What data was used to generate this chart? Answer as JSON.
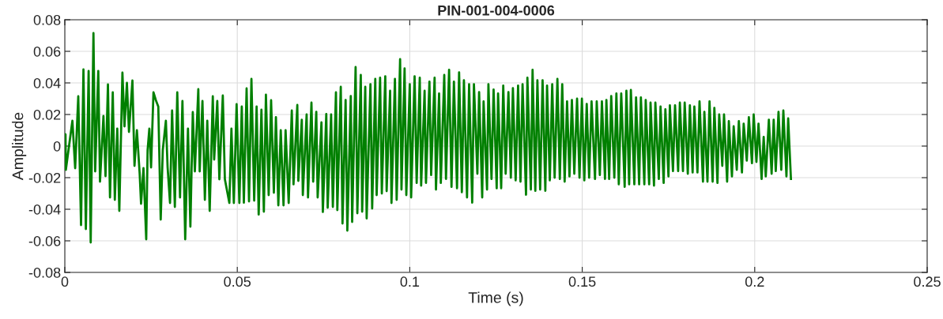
{
  "chart_data": {
    "type": "line",
    "title": "PIN-001-004-0006",
    "xlabel": "Time (s)",
    "ylabel": "Amplitude",
    "xlim": [
      0,
      0.25
    ],
    "xticks": [
      0,
      0.05,
      0.1,
      0.15,
      0.2,
      0.25
    ],
    "ylim": [
      -0.08,
      0.08
    ],
    "yticks": [
      -0.08,
      -0.06,
      -0.04,
      -0.02,
      0,
      0.02,
      0.04,
      0.06,
      0.08
    ],
    "grid": true,
    "line_style": "solid",
    "color": "#008000",
    "x": [
      0.0,
      0.0002,
      0.0003,
      0.0022,
      0.003,
      0.0039,
      0.0047,
      0.0054,
      0.0061,
      0.0069,
      0.0075,
      0.0083,
      0.0088,
      0.0097,
      0.0102,
      0.0112,
      0.0118,
      0.0125,
      0.0131,
      0.0139,
      0.0145,
      0.0152,
      0.0158,
      0.0167,
      0.0173,
      0.018,
      0.0186,
      0.0196,
      0.0202,
      0.0209,
      0.0217,
      0.0221,
      0.0228,
      0.0236,
      0.024,
      0.0245,
      0.025,
      0.0257,
      0.0264,
      0.0271,
      0.0278,
      0.0284,
      0.0293,
      0.0298,
      0.0305,
      0.0311,
      0.0319,
      0.0326,
      0.0334,
      0.0341,
      0.0349,
      0.0357,
      0.0364,
      0.0371,
      0.0377,
      0.0387,
      0.0391,
      0.0399,
      0.0406,
      0.0413,
      0.042,
      0.0429,
      0.0433,
      0.0442,
      0.0448,
      0.0458,
      0.0464,
      0.0477,
      0.0483,
      0.049,
      0.0498,
      0.0506,
      0.0513,
      0.0519,
      0.0527,
      0.0534,
      0.0541,
      0.0549,
      0.0556,
      0.0562,
      0.057,
      0.0577,
      0.0583,
      0.0591,
      0.0598,
      0.0606,
      0.0612,
      0.0619,
      0.0626,
      0.0634,
      0.064,
      0.0649,
      0.0658,
      0.0663,
      0.0674,
      0.0677,
      0.0687,
      0.069,
      0.0701,
      0.0705,
      0.0715,
      0.072,
      0.0729,
      0.0733,
      0.0744,
      0.0748,
      0.0758,
      0.0762,
      0.0772,
      0.0777,
      0.0786,
      0.079,
      0.08,
      0.0805,
      0.0814,
      0.0819,
      0.0829,
      0.0833,
      0.0843,
      0.0848,
      0.0858,
      0.0862,
      0.0871,
      0.0875,
      0.0886,
      0.0891,
      0.09,
      0.0904,
      0.0914,
      0.0919,
      0.0929,
      0.0933,
      0.0943,
      0.0947,
      0.0957,
      0.0962,
      0.0972,
      0.0976,
      0.0985,
      0.099,
      0.1,
      0.1004,
      0.1014,
      0.102,
      0.1029,
      0.1033,
      0.1043,
      0.1047,
      0.1057,
      0.1062,
      0.1072,
      0.1076,
      0.1085,
      0.109,
      0.11,
      0.1105,
      0.1114,
      0.1121,
      0.1128,
      0.1137,
      0.1143,
      0.1151,
      0.1157,
      0.1166,
      0.1172,
      0.1181,
      0.1186,
      0.1196,
      0.1201,
      0.121,
      0.1214,
      0.1224,
      0.1228,
      0.1237,
      0.1243,
      0.1252,
      0.1256,
      0.1265,
      0.1271,
      0.1278,
      0.1286,
      0.1293,
      0.1299,
      0.1307,
      0.1314,
      0.1321,
      0.1327,
      0.1337,
      0.1341,
      0.1351,
      0.1356,
      0.1364,
      0.137,
      0.1378,
      0.1385,
      0.1393,
      0.1398,
      0.1406,
      0.1413,
      0.142,
      0.1428,
      0.1435,
      0.1442,
      0.1449,
      0.1456,
      0.1463,
      0.147,
      0.1477,
      0.1485,
      0.1492,
      0.1499,
      0.1506,
      0.1513,
      0.152,
      0.1527,
      0.1537,
      0.1542,
      0.1551,
      0.1557,
      0.1566,
      0.157,
      0.1578,
      0.1584,
      0.1593,
      0.1599,
      0.1606,
      0.1613,
      0.1623,
      0.1628,
      0.1636,
      0.1641,
      0.1651,
      0.1656,
      0.1665,
      0.167,
      0.168,
      0.1684,
      0.1694,
      0.1698,
      0.1708,
      0.1712,
      0.1722,
      0.1727,
      0.1736,
      0.1741,
      0.175,
      0.1754,
      0.1763,
      0.1769,
      0.1778,
      0.1783,
      0.1792,
      0.1797,
      0.1806,
      0.1812,
      0.182,
      0.1825,
      0.1834,
      0.184,
      0.185,
      0.1854,
      0.1863,
      0.1869,
      0.1878,
      0.1883,
      0.1892,
      0.1897,
      0.1906,
      0.1911,
      0.192,
      0.1925,
      0.1934,
      0.1939,
      0.1948,
      0.1954,
      0.1963,
      0.1968,
      0.1977,
      0.1983,
      0.1992,
      0.1997,
      0.2005,
      0.2011,
      0.202,
      0.2026,
      0.2032,
      0.2041,
      0.2049,
      0.2055,
      0.2061,
      0.2069,
      0.2077,
      0.2083,
      0.2092,
      0.2097,
      0.2105
    ],
    "values": [
      0.005,
      0.0075,
      -0.015,
      0.016,
      -0.014,
      0.0315,
      -0.05,
      0.0485,
      -0.0525,
      0.0475,
      -0.061,
      0.0715,
      -0.016,
      0.0475,
      -0.0225,
      0.019,
      -0.019,
      0.039,
      -0.0325,
      0.034,
      -0.034,
      0.011,
      -0.041,
      0.0465,
      0.0125,
      0.04,
      0.009,
      0.0415,
      -0.0125,
      0.01,
      -0.0175,
      -0.0365,
      -0.014,
      -0.059,
      -0.0025,
      0.011,
      -0.0135,
      0.034,
      0.029,
      0.025,
      -0.0465,
      -0.0025,
      0.016,
      -0.0135,
      -0.036,
      0.0225,
      -0.0385,
      0.034,
      -0.0325,
      0.0285,
      -0.059,
      0.011,
      -0.051,
      0.0215,
      -0.016,
      0.036,
      -0.016,
      0.0285,
      -0.034,
      0.016,
      -0.041,
      0.0315,
      -0.0085,
      0.0285,
      -0.021,
      0.032,
      -0.021,
      -0.036,
      0.011,
      -0.036,
      0.0265,
      -0.036,
      0.025,
      -0.0358,
      0.0365,
      -0.035,
      0.0425,
      -0.0345,
      0.025,
      -0.0433,
      0.023,
      -0.0415,
      0.0325,
      -0.031,
      0.029,
      -0.0295,
      0.0183,
      -0.0375,
      0.01,
      -0.0375,
      0.01,
      -0.036,
      0.0225,
      -0.0242,
      0.026,
      -0.022,
      0.0167,
      -0.031,
      0.02,
      -0.0325,
      0.0275,
      -0.0225,
      0.0217,
      -0.0325,
      0.015,
      -0.0417,
      0.0203,
      -0.039,
      0.02,
      -0.0385,
      0.034,
      -0.0405,
      0.0375,
      -0.049,
      0.0292,
      -0.0535,
      0.0317,
      -0.048,
      0.05,
      -0.0425,
      0.045,
      -0.0415,
      0.0375,
      -0.0458,
      0.0392,
      -0.0395,
      0.0425,
      -0.031,
      0.0433,
      -0.03,
      0.0442,
      -0.0285,
      0.035,
      -0.036,
      0.0425,
      -0.034,
      0.055,
      -0.0275,
      0.0492,
      -0.031,
      0.0392,
      -0.0325,
      0.0442,
      -0.0233,
      0.0433,
      -0.025,
      0.035,
      -0.0233,
      0.0408,
      -0.0183,
      0.0433,
      -0.0275,
      0.0333,
      -0.0233,
      0.045,
      -0.0208,
      0.0483,
      -0.0258,
      0.0408,
      -0.0267,
      0.0467,
      -0.0292,
      0.0417,
      -0.0325,
      0.0392,
      -0.0358,
      0.0392,
      -0.0175,
      0.0342,
      -0.0325,
      0.0283,
      -0.0275,
      0.0392,
      -0.0208,
      0.0358,
      -0.0267,
      0.0333,
      -0.0267,
      0.0383,
      -0.0175,
      0.0342,
      -0.02,
      0.0367,
      -0.0217,
      0.0383,
      -0.0225,
      0.0392,
      -0.0308,
      0.0433,
      -0.0275,
      0.0483,
      -0.0283,
      0.0417,
      -0.0275,
      0.0417,
      -0.0283,
      0.0383,
      -0.0217,
      0.0392,
      -0.02,
      0.0425,
      -0.0208,
      0.0392,
      -0.0225,
      0.0283,
      -0.0192,
      0.0292,
      -0.0175,
      0.03,
      -0.02,
      0.03,
      -0.0217,
      0.0267,
      -0.02,
      0.0283,
      -0.0208,
      0.0283,
      -0.0183,
      0.0283,
      -0.0208,
      0.0292,
      -0.0208,
      0.0317,
      -0.02,
      0.0333,
      -0.0242,
      0.0333,
      -0.0258,
      0.035,
      -0.0242,
      0.0355,
      -0.0242,
      0.0308,
      -0.0242,
      0.0308,
      -0.0242,
      0.0292,
      -0.0242,
      0.0275,
      -0.025,
      0.0275,
      -0.0208,
      0.025,
      -0.0233,
      0.0233,
      -0.0192,
      0.0258,
      -0.0158,
      0.0258,
      -0.0158,
      0.0275,
      -0.0158,
      0.0275,
      -0.0175,
      0.0258,
      -0.0167,
      0.025,
      -0.0167,
      0.0283,
      -0.0225,
      0.0217,
      -0.0225,
      0.0283,
      -0.0225,
      0.0242,
      -0.0233,
      0.02,
      -0.0125,
      0.02,
      -0.0225,
      0.0158,
      -0.0192,
      0.0125,
      -0.015,
      0.0158,
      -0.0167,
      0.0142,
      -0.0092,
      0.0183,
      -0.0108,
      0.02,
      -0.01,
      0.0142,
      -0.0208,
      0.0058,
      -0.0192,
      0.0167,
      -0.0175,
      0.0167,
      -0.0158,
      0.0217,
      -0.015,
      0.0225,
      -0.0192,
      0.0175,
      -0.0208
    ]
  }
}
